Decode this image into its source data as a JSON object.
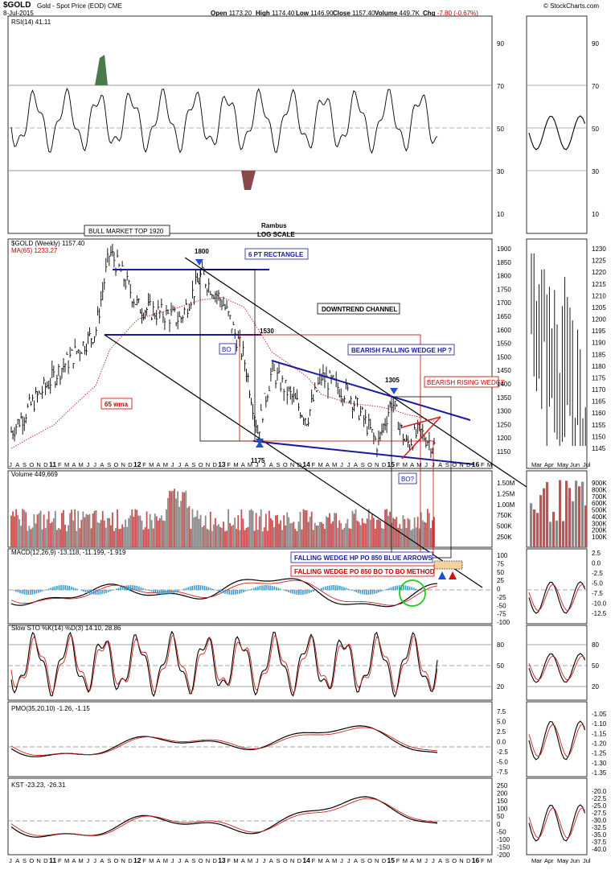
{
  "header": {
    "symbol": "$GOLD",
    "name": "Gold - Spot Price (EOD)",
    "exchange": "CME",
    "date": "8-Jul-2015",
    "open_label": "Open",
    "open": "1173.20",
    "high_label": "High",
    "high": "1174.40",
    "low_label": "Low",
    "low": "1146.90",
    "close_label": "Close",
    "close": "1157.40",
    "volume_label": "Volume",
    "volume": "449.7K",
    "chg_label": "Chg",
    "chg": "-7.80 (-0.67%)",
    "copyright": "© StockCharts.com"
  },
  "colors": {
    "price_line": "#000000",
    "ma_line": "#d02020",
    "channel": "#1a1aa0",
    "wedge_red": "#d02020",
    "volume_up": "#8a8a8a",
    "volume_down": "#c85050",
    "macd_hist": "#3a9ad0",
    "rsi_fill": "#4a7a4a",
    "rsi_fill_low": "#8a4a4a",
    "circle": "#22cc22"
  },
  "annotations": {
    "bull_top": "BULL MARKET TOP 1920",
    "rambus": "Rambus",
    "log_scale": "LOG SCALE",
    "p1800": "1800",
    "six_pt": "6 PT RECTANGLE",
    "downtrend": "DOWNTREND CHANNEL",
    "p1530": "1530",
    "bo": "BO",
    "bearish_falling": "BEARISH FALLING WEDGE HP ?",
    "p1305": "1305",
    "bearish_rising": "BEARISH RISING WEDGE",
    "wma65": "65 wma",
    "p1175": "1175",
    "bo2": "BO?",
    "fw_blue": "FALLING WEDGE HP PO 850 BLUE ARROWS",
    "fw_red": "FALLING WEDGE PO 850 BO TO BO METHOD"
  },
  "panels": {
    "rsi": {
      "label": "RSI(14) 41.11",
      "ticks": [
        "90",
        "70",
        "50",
        "30",
        "10"
      ]
    },
    "price": {
      "label": "$GOLD (Weekly) 1157.40",
      "ma_label": "MA(65) 1233.27",
      "ticks": [
        "1900",
        "1850",
        "1800",
        "1750",
        "1700",
        "1650",
        "1600",
        "1550",
        "1500",
        "1450",
        "1400",
        "1350",
        "1300",
        "1250",
        "1200",
        "1150"
      ],
      "right_ticks": [
        "1230",
        "1225",
        "1220",
        "1215",
        "1210",
        "1205",
        "1200",
        "1195",
        "1190",
        "1185",
        "1180",
        "1175",
        "1170",
        "1165",
        "1160",
        "1155",
        "1150",
        "1145"
      ]
    },
    "volume": {
      "label": "Volume 449,669",
      "ticks": [
        "1.50M",
        "1.25M",
        "1.00M",
        "750K",
        "500K",
        "250K"
      ],
      "right_ticks": [
        "900K",
        "800K",
        "700K",
        "600K",
        "500K",
        "400K",
        "300K",
        "200K",
        "100K"
      ]
    },
    "macd": {
      "label": "MACD(12,26,9) -13.118, -11.199, -1.919",
      "ticks": [
        "100",
        "75",
        "50",
        "25",
        "0",
        "-25",
        "-50",
        "-75",
        "-100"
      ],
      "right_ticks": [
        "2.5",
        "0.0",
        "-2.5",
        "-5.0",
        "-7.5",
        "-10.0",
        "-12.5"
      ]
    },
    "sto": {
      "label": "Slow STO %K(14) %D(3) 14.10, 28.86",
      "ticks": [
        "80",
        "50",
        "20"
      ]
    },
    "pmo": {
      "label": "PMO(35,20,10) -1.26, -1.15",
      "ticks": [
        "7.5",
        "5.0",
        "2.5",
        "0.0",
        "-2.5",
        "-5.0",
        "-7.5"
      ],
      "right_ticks": [
        "-1.05",
        "-1.10",
        "-1.15",
        "-1.20",
        "-1.25",
        "-1.30",
        "-1.35"
      ]
    },
    "kst": {
      "label": "KST -23.23, -26.31",
      "ticks": [
        "250",
        "200",
        "150",
        "100",
        "50",
        "0",
        "-50",
        "-100",
        "-150",
        "-200"
      ],
      "right_ticks": [
        "-20.0",
        "-22.5",
        "-25.0",
        "-27.5",
        "-30.0",
        "-32.5",
        "-35.0",
        "-37.5",
        "-40.0"
      ]
    }
  },
  "x_axis": {
    "labels": [
      "J",
      "A",
      "S",
      "O",
      "N",
      "D",
      "11",
      "F",
      "M",
      "A",
      "M",
      "J",
      "J",
      "A",
      "S",
      "O",
      "N",
      "D",
      "12",
      "F",
      "M",
      "A",
      "M",
      "J",
      "J",
      "A",
      "S",
      "O",
      "N",
      "D",
      "13",
      "F",
      "M",
      "A",
      "M",
      "J",
      "J",
      "A",
      "S",
      "O",
      "N",
      "D",
      "14",
      "F",
      "M",
      "A",
      "M",
      "J",
      "J",
      "A",
      "S",
      "O",
      "N",
      "D",
      "15",
      "F",
      "M",
      "A",
      "M",
      "J",
      "J",
      "A",
      "S",
      "O",
      "N",
      "D",
      "16",
      "F",
      "M"
    ],
    "right_labels": [
      "Mar",
      "Apr",
      "May",
      "Jun",
      "Jul"
    ]
  },
  "chart_data": {
    "type": "line",
    "title": "$GOLD Gold - Spot Price (EOD) CME",
    "scale": "log",
    "x": [
      "2010-07",
      "2011-01",
      "2011-07",
      "2011-09",
      "2012-01",
      "2012-07",
      "2012-10",
      "2013-01",
      "2013-04",
      "2013-06",
      "2013-08",
      "2014-01",
      "2014-03",
      "2014-07",
      "2014-11",
      "2015-01",
      "2015-03",
      "2015-05",
      "2015-07"
    ],
    "series": [
      {
        "name": "$GOLD (Weekly)",
        "values": [
          1200,
          1380,
          1550,
          1900,
          1650,
          1600,
          1790,
          1670,
          1450,
          1200,
          1400,
          1240,
          1380,
          1320,
          1160,
          1300,
          1160,
          1200,
          1157
        ]
      },
      {
        "name": "MA(65)",
        "values": [
          1150,
          1220,
          1350,
          1480,
          1600,
          1650,
          1680,
          1690,
          1650,
          1560,
          1470,
          1380,
          1320,
          1290,
          1280,
          1270,
          1255,
          1245,
          1233
        ]
      }
    ],
    "ylim": [
      1120,
      1950
    ],
    "annotations": [
      "BULL MARKET TOP 1920",
      "1800",
      "6 PT RECTANGLE",
      "DOWNTREND CHANNEL",
      "1530",
      "BO",
      "BEARISH FALLING WEDGE HP ?",
      "1305",
      "BEARISH RISING WEDGE",
      "65 wma",
      "1175",
      "BO?",
      "FALLING WEDGE HP PO 850 BLUE ARROWS",
      "FALLING WEDGE PO 850 BO TO BO METHOD"
    ]
  }
}
